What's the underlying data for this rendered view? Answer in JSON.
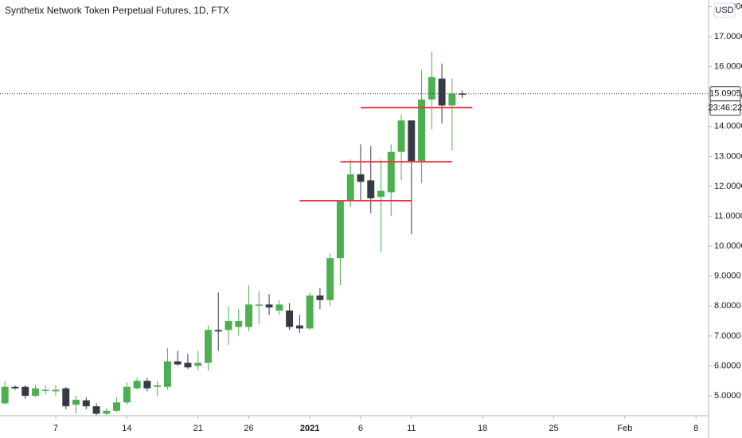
{
  "chart_data": {
    "type": "candlestick",
    "title": "Synthetix Network Token Perpetual Futures, 1D, FTX",
    "currency": "USD",
    "countdown": "23:46:22",
    "last_price": 15.0905,
    "up_color": "#4caf50",
    "down_color": "#363a45",
    "line_color": "#f23645",
    "x": [
      "2020-12-02",
      "2020-12-03",
      "2020-12-04",
      "2020-12-05",
      "2020-12-06",
      "2020-12-07",
      "2020-12-08",
      "2020-12-09",
      "2020-12-10",
      "2020-12-11",
      "2020-12-12",
      "2020-12-13",
      "2020-12-14",
      "2020-12-15",
      "2020-12-16",
      "2020-12-17",
      "2020-12-18",
      "2020-12-19",
      "2020-12-20",
      "2020-12-21",
      "2020-12-22",
      "2020-12-23",
      "2020-12-24",
      "2020-12-25",
      "2020-12-26",
      "2020-12-27",
      "2020-12-28",
      "2020-12-29",
      "2020-12-30",
      "2020-12-31",
      "2021-01-01",
      "2021-01-02",
      "2021-01-03",
      "2021-01-04",
      "2021-01-05",
      "2021-01-06",
      "2021-01-07",
      "2021-01-08",
      "2021-01-09",
      "2021-01-10",
      "2021-01-11",
      "2021-01-12",
      "2021-01-13",
      "2021-01-14",
      "2021-01-15",
      "2021-01-16"
    ],
    "open": [
      4.75,
      5.3,
      5.3,
      5.0,
      5.2,
      5.15,
      5.25,
      4.7,
      4.85,
      4.65,
      4.4,
      4.5,
      4.78,
      5.25,
      5.5,
      5.3,
      5.3,
      6.15,
      6.1,
      6.0,
      6.1,
      7.2,
      7.2,
      7.3,
      7.3,
      8.05,
      8.05,
      7.85,
      7.85,
      7.35,
      7.25,
      8.35,
      8.2,
      9.6,
      11.5,
      12.4,
      12.2,
      11.65,
      11.8,
      13.15,
      14.2,
      12.85,
      14.9,
      15.6,
      14.7,
      15.1
    ],
    "high": [
      5.5,
      5.35,
      5.35,
      5.35,
      5.35,
      5.35,
      5.3,
      5.0,
      4.95,
      4.75,
      4.6,
      4.95,
      5.45,
      5.6,
      5.6,
      5.5,
      6.6,
      6.5,
      6.4,
      6.5,
      7.35,
      8.45,
      8.0,
      7.9,
      8.7,
      8.5,
      8.4,
      8.2,
      8.1,
      7.7,
      8.45,
      8.6,
      9.75,
      11.55,
      12.9,
      13.4,
      13.35,
      12.9,
      13.4,
      14.4,
      14.2,
      15.9,
      16.5,
      16.1,
      15.6,
      15.2
    ],
    "low": [
      4.7,
      5.2,
      4.9,
      4.95,
      5.05,
      5.0,
      4.55,
      4.4,
      4.55,
      4.35,
      4.35,
      4.45,
      4.7,
      5.2,
      5.15,
      5.0,
      5.2,
      6.0,
      5.9,
      5.85,
      5.85,
      6.5,
      6.7,
      7.0,
      7.15,
      7.4,
      7.7,
      7.7,
      7.2,
      7.1,
      7.2,
      7.9,
      8.0,
      8.7,
      11.3,
      11.5,
      11.1,
      9.8,
      11.0,
      12.2,
      10.4,
      12.1,
      13.9,
      14.1,
      13.2,
      14.95
    ],
    "close": [
      5.3,
      5.25,
      5.0,
      5.25,
      5.2,
      5.2,
      4.65,
      4.87,
      4.65,
      4.4,
      4.5,
      4.78,
      5.3,
      5.5,
      5.25,
      5.35,
      6.15,
      6.05,
      5.95,
      6.1,
      7.2,
      7.15,
      7.5,
      7.5,
      8.05,
      8.05,
      7.95,
      8.05,
      7.3,
      7.25,
      8.35,
      8.2,
      9.6,
      11.5,
      12.4,
      12.15,
      11.6,
      11.85,
      13.15,
      14.2,
      12.85,
      14.9,
      15.65,
      14.7,
      15.1,
      15.09
    ],
    "levels": [
      {
        "value": 11.52,
        "start": "2020-12-31",
        "end": "2021-01-11"
      },
      {
        "value": 12.82,
        "start": "2021-01-04",
        "end": "2021-01-15"
      },
      {
        "value": 14.63,
        "start": "2021-01-06",
        "end": "2021-01-17"
      }
    ],
    "xlim": [
      "2020-12-01",
      "2021-02-09"
    ],
    "xticks": [
      {
        "value": "2020-12-07",
        "label": "7"
      },
      {
        "value": "2020-12-14",
        "label": "14"
      },
      {
        "value": "2020-12-21",
        "label": "21"
      },
      {
        "value": "2020-12-26",
        "label": "26"
      },
      {
        "value": "2021-01-01",
        "label": "2021"
      },
      {
        "value": "2021-01-06",
        "label": "6"
      },
      {
        "value": "2021-01-11",
        "label": "11"
      },
      {
        "value": "2021-01-18",
        "label": "18"
      },
      {
        "value": "2021-01-25",
        "label": "25"
      },
      {
        "value": "2021-02-01",
        "label": "Feb"
      },
      {
        "value": "2021-02-08",
        "label": "8"
      }
    ],
    "ylim": [
      4.335,
      18.225
    ],
    "yticks": [
      {
        "value": 5,
        "label": "5.0000"
      },
      {
        "value": 6,
        "label": "6.0000"
      },
      {
        "value": 7,
        "label": "7.0000"
      },
      {
        "value": 8,
        "label": "8.0000"
      },
      {
        "value": 9,
        "label": "9.0000"
      },
      {
        "value": 10,
        "label": "10.0000"
      },
      {
        "value": 11,
        "label": "11.0000"
      },
      {
        "value": 12,
        "label": "12.0000"
      },
      {
        "value": 13,
        "label": "13.0000"
      },
      {
        "value": 14,
        "label": "14.0000"
      },
      {
        "value": 15,
        "label": "15.0000"
      },
      {
        "value": 16,
        "label": "16.0000"
      },
      {
        "value": 17,
        "label": "17.0000"
      },
      {
        "value": 18,
        "label": "18.0000"
      }
    ],
    "grid": false
  }
}
